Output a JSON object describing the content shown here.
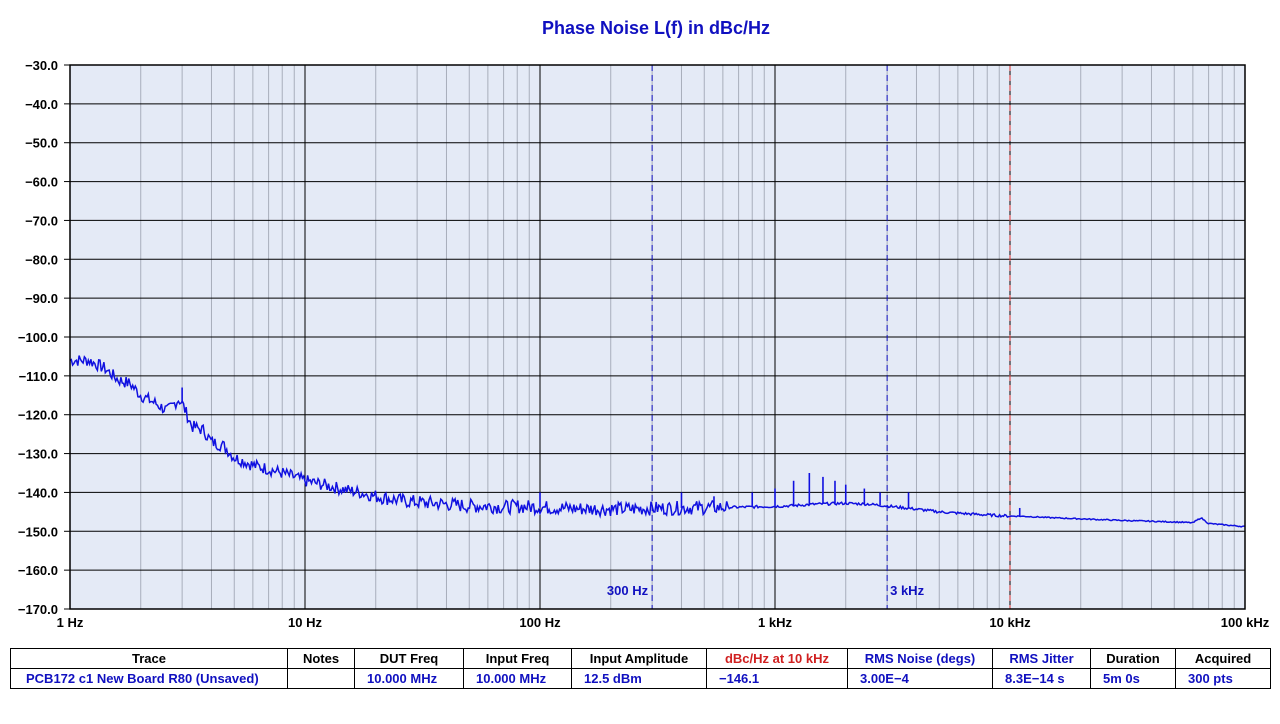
{
  "chart_data": {
    "type": "line",
    "title": "Phase Noise L(f) in dBc/Hz",
    "x_scale": "log",
    "xlim": [
      1,
      100000
    ],
    "ylim": [
      -170,
      -30
    ],
    "grid": true,
    "x_tick_labels": [
      "1 Hz",
      "10 Hz",
      "100 Hz",
      "1 kHz",
      "10 kHz",
      "100 kHz"
    ],
    "y_ticks": [
      -30,
      -40,
      -50,
      -60,
      -70,
      -80,
      -90,
      -100,
      -110,
      -120,
      -130,
      -140,
      -150,
      -160,
      -170
    ],
    "y_tick_labels": [
      "−30.0",
      "−40.0",
      "−50.0",
      "−60.0",
      "−70.0",
      "−80.0",
      "−90.0",
      "−100.0",
      "−110.0",
      "−120.0",
      "−130.0",
      "−140.0",
      "−150.0",
      "−160.0",
      "−170.0"
    ],
    "markers": [
      {
        "x": 300,
        "label": "300 Hz",
        "color": "#1010c0"
      },
      {
        "x": 3000,
        "label": "3 kHz",
        "color": "#1010c0"
      },
      {
        "x": 10000,
        "label": "",
        "color": "#e03030"
      }
    ],
    "series": [
      {
        "color": "#1010e0",
        "x": [
          1,
          1.2,
          1.4,
          1.6,
          1.8,
          2,
          2.3,
          2.6,
          2.9,
          3,
          3.3,
          3.7,
          4,
          4.5,
          5,
          5.5,
          6,
          7,
          8,
          9,
          10,
          12,
          14,
          17,
          20,
          25,
          30,
          40,
          50,
          60,
          70,
          80,
          90,
          100,
          120,
          150,
          200,
          250,
          300,
          400,
          500,
          700,
          1000,
          1200,
          1500,
          2000,
          2500,
          3000,
          4000,
          5000,
          7000,
          10000,
          11000,
          15000,
          20000,
          30000,
          50000,
          60000,
          65000,
          70000,
          80000,
          100000
        ],
        "y": [
          -106,
          -106,
          -108,
          -111,
          -112,
          -115,
          -117,
          -119,
          -116,
          -117,
          -123,
          -124,
          -127,
          -128,
          -131,
          -132,
          -133,
          -134,
          -135,
          -136,
          -137,
          -138,
          -139,
          -140,
          -141,
          -142,
          -142.5,
          -143,
          -143.5,
          -143.5,
          -143.8,
          -143.6,
          -143.7,
          -143.8,
          -144,
          -144.2,
          -144.3,
          -144.2,
          -144.1,
          -144,
          -143.9,
          -143.8,
          -143.6,
          -143.4,
          -143,
          -142.8,
          -143,
          -143.5,
          -144.3,
          -145,
          -145.6,
          -146.1,
          -146.1,
          -146.5,
          -146.8,
          -147.2,
          -147.6,
          -147.8,
          -146.5,
          -148,
          -148.3,
          -148.8
        ]
      }
    ],
    "spurs": [
      {
        "x": 3,
        "y": -113
      },
      {
        "x": 100,
        "y": -140
      },
      {
        "x": 400,
        "y": -140
      },
      {
        "x": 550,
        "y": -141
      },
      {
        "x": 800,
        "y": -140
      },
      {
        "x": 1000,
        "y": -139
      },
      {
        "x": 1200,
        "y": -137
      },
      {
        "x": 1400,
        "y": -135
      },
      {
        "x": 1600,
        "y": -136
      },
      {
        "x": 1800,
        "y": -137
      },
      {
        "x": 2000,
        "y": -138
      },
      {
        "x": 2400,
        "y": -139
      },
      {
        "x": 2800,
        "y": -140
      },
      {
        "x": 3700,
        "y": -140
      },
      {
        "x": 11000,
        "y": -144
      }
    ]
  },
  "summary_table": {
    "headers": [
      "Trace",
      "Notes",
      "DUT Freq",
      "Input Freq",
      "Input Amplitude",
      "dBc/Hz at 10 kHz",
      "RMS Noise (degs)",
      "RMS Jitter",
      "Duration",
      "Acquired"
    ],
    "header_colors": [
      "#000000",
      "#000000",
      "#000000",
      "#000000",
      "#000000",
      "#d02020",
      "#1010c0",
      "#1010c0",
      "#000000",
      "#000000"
    ],
    "row": [
      "PCB172 c1 New Board R80 (Unsaved)",
      "",
      "10.000 MHz",
      "10.000 MHz",
      "12.5 dBm",
      "−146.1",
      "3.00E−4",
      "8.3E−14 s",
      "5m 0s",
      "300 pts"
    ]
  }
}
